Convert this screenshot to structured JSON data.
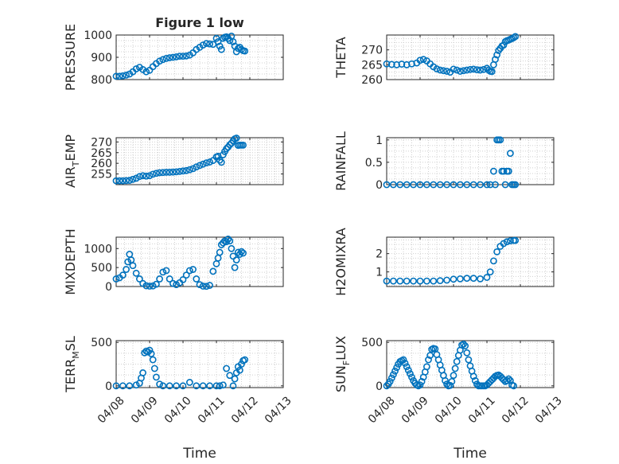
{
  "figure": {
    "title": "Figure 1 low",
    "xlabel": "Time",
    "x_tick_labels": [
      "04/08",
      "04/09",
      "04/10",
      "04/11",
      "04/12",
      "04/13"
    ]
  },
  "colors": {
    "marker": "#0072BD",
    "axes": "#262626",
    "grid": "#d0d0d0"
  },
  "chart_data": [
    {
      "type": "scatter",
      "title": "Figure 1 low",
      "ylabel": "PRESSURE",
      "xlim": [
        0,
        5
      ],
      "ylim": [
        800,
        1000
      ],
      "yticks": [
        800,
        900,
        1000
      ],
      "grid": true,
      "x": [
        0.0,
        0.1,
        0.2,
        0.3,
        0.4,
        0.5,
        0.6,
        0.7,
        0.8,
        0.9,
        1.0,
        1.1,
        1.2,
        1.3,
        1.4,
        1.5,
        1.6,
        1.7,
        1.8,
        1.9,
        2.0,
        2.1,
        2.2,
        2.3,
        2.4,
        2.5,
        2.6,
        2.7,
        2.8,
        2.9,
        3.0,
        3.05,
        3.1,
        3.15,
        3.2,
        3.25,
        3.3,
        3.35,
        3.4,
        3.45,
        3.5,
        3.55,
        3.6,
        3.65,
        3.7,
        3.75,
        3.8,
        3.85
      ],
      "y": [
        815,
        815,
        817,
        820,
        825,
        835,
        848,
        855,
        845,
        835,
        842,
        858,
        872,
        883,
        890,
        895,
        898,
        900,
        902,
        905,
        905,
        906,
        910,
        920,
        935,
        945,
        955,
        962,
        960,
        958,
        985,
        970,
        950,
        935,
        985,
        990,
        992,
        985,
        975,
        995,
        970,
        950,
        925,
        940,
        945,
        935,
        930,
        928
      ]
    },
    {
      "type": "scatter",
      "ylabel": "THETA",
      "xlim": [
        0,
        5
      ],
      "ylim": [
        260,
        275
      ],
      "yticks": [
        260,
        265,
        270
      ],
      "grid": true,
      "x": [
        0.0,
        0.15,
        0.3,
        0.45,
        0.6,
        0.75,
        0.9,
        1.0,
        1.1,
        1.2,
        1.3,
        1.4,
        1.5,
        1.6,
        1.7,
        1.8,
        1.9,
        2.0,
        2.1,
        2.2,
        2.3,
        2.4,
        2.5,
        2.6,
        2.7,
        2.8,
        2.9,
        3.0,
        3.05,
        3.1,
        3.15,
        3.2,
        3.25,
        3.3,
        3.35,
        3.4,
        3.45,
        3.5,
        3.55,
        3.6,
        3.65,
        3.7,
        3.75,
        3.8,
        3.85
      ],
      "y": [
        265.3,
        265.1,
        265.0,
        265.2,
        265.0,
        265.3,
        265.6,
        266.5,
        266.8,
        266.3,
        265.3,
        264.3,
        263.6,
        263.2,
        263.0,
        262.8,
        262.5,
        263.5,
        263.2,
        262.8,
        263.0,
        263.2,
        263.4,
        263.5,
        263.3,
        263.2,
        263.4,
        263.8,
        263.2,
        262.8,
        262.7,
        265.0,
        266.8,
        268.3,
        269.8,
        270.5,
        271.3,
        271.6,
        272.8,
        273.1,
        273.3,
        273.6,
        273.8,
        274.1,
        274.5
      ]
    },
    {
      "type": "scatter",
      "ylabel": "AIR_TEMP",
      "ylabel_parts": {
        "before": "AIR",
        "sub": "T",
        "after": "EMP"
      },
      "xlim": [
        0,
        5
      ],
      "ylim": [
        250,
        272
      ],
      "yticks": [
        255,
        260,
        265,
        270
      ],
      "grid": true,
      "x": [
        0.0,
        0.1,
        0.2,
        0.3,
        0.4,
        0.5,
        0.6,
        0.7,
        0.8,
        0.9,
        1.0,
        1.1,
        1.2,
        1.3,
        1.4,
        1.5,
        1.6,
        1.7,
        1.8,
        1.9,
        2.0,
        2.1,
        2.2,
        2.3,
        2.4,
        2.5,
        2.6,
        2.7,
        2.8,
        2.9,
        3.0,
        3.05,
        3.1,
        3.15,
        3.2,
        3.25,
        3.3,
        3.35,
        3.4,
        3.45,
        3.5,
        3.55,
        3.6,
        3.65,
        3.7,
        3.75,
        3.8
      ],
      "y": [
        251.8,
        251.8,
        251.8,
        251.9,
        252.0,
        252.5,
        253.0,
        253.8,
        254.2,
        254.0,
        254.2,
        254.9,
        255.3,
        255.6,
        255.7,
        255.8,
        255.8,
        255.9,
        256.0,
        256.2,
        256.4,
        256.6,
        257.0,
        257.5,
        258.3,
        259.0,
        259.6,
        260.2,
        260.6,
        261.3,
        263.0,
        263.3,
        261.5,
        260.5,
        264.0,
        265.5,
        266.8,
        267.6,
        268.7,
        269.4,
        270.5,
        271.5,
        271.8,
        268.4,
        268.5,
        268.5,
        268.5
      ]
    },
    {
      "type": "scatter",
      "ylabel": "RAINFALL",
      "xlim": [
        0,
        5
      ],
      "ylim": [
        0,
        1.05
      ],
      "yticks": [
        0,
        0.5,
        1
      ],
      "grid": true,
      "x": [
        0.0,
        0.2,
        0.4,
        0.6,
        0.8,
        1.0,
        1.2,
        1.4,
        1.6,
        1.8,
        2.0,
        2.2,
        2.4,
        2.6,
        2.8,
        3.0,
        3.1,
        3.2,
        3.25,
        3.3,
        3.35,
        3.4,
        3.45,
        3.5,
        3.55,
        3.6,
        3.65,
        3.7,
        3.75,
        3.8,
        3.85
      ],
      "y": [
        0,
        0,
        0,
        0,
        0,
        0,
        0,
        0,
        0,
        0,
        0,
        0,
        0,
        0,
        0,
        0,
        0,
        0.3,
        0,
        1.0,
        1.0,
        1.0,
        0.3,
        0.3,
        0,
        0.3,
        0.3,
        0.7,
        0,
        0,
        0
      ]
    },
    {
      "type": "scatter",
      "ylabel": "MIXDEPTH",
      "xlim": [
        0,
        5
      ],
      "ylim": [
        0,
        1300
      ],
      "yticks": [
        0,
        500,
        1000
      ],
      "grid": true,
      "x": [
        0.0,
        0.1,
        0.2,
        0.3,
        0.35,
        0.4,
        0.45,
        0.5,
        0.6,
        0.7,
        0.8,
        0.9,
        1.0,
        1.1,
        1.2,
        1.3,
        1.4,
        1.5,
        1.6,
        1.7,
        1.8,
        1.9,
        2.0,
        2.1,
        2.2,
        2.3,
        2.4,
        2.5,
        2.6,
        2.7,
        2.8,
        2.9,
        3.0,
        3.05,
        3.1,
        3.15,
        3.2,
        3.25,
        3.3,
        3.35,
        3.4,
        3.45,
        3.5,
        3.55,
        3.6,
        3.65,
        3.7,
        3.75,
        3.8
      ],
      "y": [
        200,
        230,
        300,
        450,
        650,
        850,
        700,
        550,
        350,
        200,
        80,
        20,
        10,
        15,
        60,
        200,
        380,
        420,
        200,
        80,
        50,
        100,
        180,
        300,
        420,
        450,
        200,
        50,
        10,
        5,
        30,
        400,
        600,
        750,
        900,
        1100,
        1150,
        1200,
        1180,
        1250,
        1200,
        1000,
        800,
        500,
        700,
        900,
        850,
        920,
        880
      ]
    },
    {
      "type": "scatter",
      "ylabel": "H2OMIXRA",
      "xlim": [
        0,
        5
      ],
      "ylim": [
        0.2,
        2.9
      ],
      "yticks": [
        1,
        2
      ],
      "grid": true,
      "x": [
        0.0,
        0.2,
        0.4,
        0.6,
        0.8,
        1.0,
        1.2,
        1.4,
        1.6,
        1.8,
        2.0,
        2.2,
        2.4,
        2.6,
        2.8,
        3.0,
        3.1,
        3.2,
        3.3,
        3.4,
        3.5,
        3.6,
        3.7,
        3.8,
        3.85
      ],
      "y": [
        0.5,
        0.5,
        0.5,
        0.5,
        0.5,
        0.5,
        0.5,
        0.5,
        0.52,
        0.55,
        0.6,
        0.62,
        0.65,
        0.65,
        0.62,
        0.7,
        1.0,
        1.6,
        2.1,
        2.4,
        2.55,
        2.65,
        2.7,
        2.72,
        2.72
      ]
    },
    {
      "type": "scatter",
      "ylabel": "TERR_MSL",
      "ylabel_parts": {
        "before": "TERR",
        "sub": "M",
        "after": "SL"
      },
      "xlim": [
        0,
        5
      ],
      "ylim": [
        -20,
        520
      ],
      "yticks": [
        0,
        500
      ],
      "grid": true,
      "x": [
        0.0,
        0.2,
        0.4,
        0.6,
        0.7,
        0.75,
        0.8,
        0.85,
        0.9,
        0.95,
        1.0,
        1.05,
        1.1,
        1.15,
        1.2,
        1.3,
        1.4,
        1.6,
        1.8,
        2.0,
        2.2,
        2.4,
        2.6,
        2.8,
        3.0,
        3.1,
        3.2,
        3.3,
        3.4,
        3.5,
        3.55,
        3.6,
        3.65,
        3.7,
        3.75,
        3.8,
        3.85
      ],
      "y": [
        0,
        0,
        0,
        10,
        30,
        90,
        150,
        380,
        400,
        390,
        410,
        370,
        300,
        200,
        100,
        20,
        0,
        0,
        0,
        0,
        40,
        0,
        0,
        0,
        0,
        0,
        10,
        200,
        120,
        0,
        80,
        150,
        220,
        180,
        250,
        290,
        300
      ]
    },
    {
      "type": "scatter",
      "ylabel": "SUN_FLUX",
      "ylabel_parts": {
        "before": "SUN",
        "sub": "F",
        "after": "LUX"
      },
      "xlim": [
        0,
        5
      ],
      "ylim": [
        -20,
        520
      ],
      "yticks": [
        0,
        500
      ],
      "grid": true,
      "x": [
        0.0,
        0.05,
        0.1,
        0.15,
        0.2,
        0.25,
        0.3,
        0.35,
        0.4,
        0.45,
        0.5,
        0.55,
        0.6,
        0.65,
        0.7,
        0.75,
        0.8,
        0.85,
        0.9,
        0.95,
        1.0,
        1.05,
        1.1,
        1.15,
        1.2,
        1.25,
        1.3,
        1.35,
        1.4,
        1.45,
        1.5,
        1.55,
        1.6,
        1.65,
        1.7,
        1.75,
        1.8,
        1.85,
        1.9,
        1.95,
        2.0,
        2.05,
        2.1,
        2.15,
        2.2,
        2.25,
        2.3,
        2.35,
        2.4,
        2.45,
        2.5,
        2.55,
        2.6,
        2.65,
        2.7,
        2.75,
        2.8,
        2.85,
        2.9,
        2.95,
        3.0,
        3.05,
        3.1,
        3.15,
        3.2,
        3.25,
        3.3,
        3.35,
        3.4,
        3.45,
        3.5,
        3.55,
        3.6,
        3.65,
        3.7,
        3.75,
        3.8
      ],
      "y": [
        0,
        20,
        50,
        90,
        130,
        170,
        210,
        250,
        280,
        290,
        300,
        260,
        220,
        180,
        140,
        100,
        60,
        30,
        10,
        0,
        10,
        50,
        100,
        160,
        220,
        300,
        350,
        420,
        430,
        425,
        360,
        300,
        240,
        180,
        120,
        60,
        20,
        0,
        5,
        50,
        120,
        200,
        280,
        350,
        410,
        470,
        480,
        460,
        380,
        300,
        230,
        170,
        110,
        60,
        20,
        0,
        0,
        0,
        0,
        0,
        10,
        30,
        50,
        70,
        90,
        110,
        120,
        125,
        110,
        90,
        70,
        50,
        60,
        80,
        60,
        10,
        0
      ]
    }
  ]
}
